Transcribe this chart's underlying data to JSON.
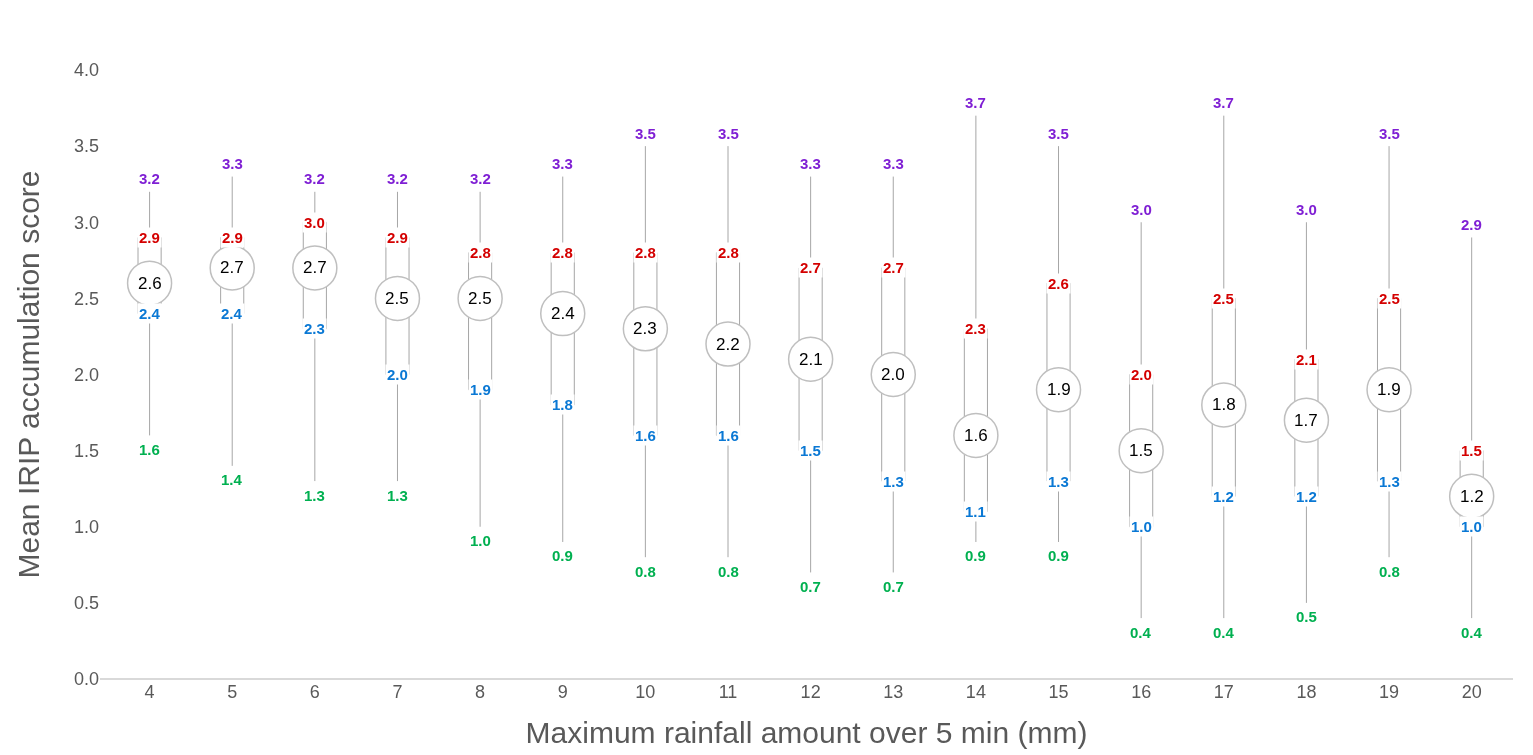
{
  "chart_data": {
    "type": "box",
    "xlabel": "Maximum rainfall amount over 5 min (mm)",
    "ylabel": "Mean IRIP accumulation score",
    "categories": [
      "4",
      "5",
      "6",
      "7",
      "8",
      "9",
      "10",
      "11",
      "12",
      "13",
      "14",
      "15",
      "16",
      "17",
      "18",
      "19",
      "20"
    ],
    "ylim": [
      0,
      4
    ],
    "yticks": [
      {
        "value": 0,
        "label": "0.0"
      },
      {
        "value": 0.5,
        "label": "0.5"
      },
      {
        "value": 1,
        "label": "1.0"
      },
      {
        "value": 1.5,
        "label": "1.5"
      },
      {
        "value": 2,
        "label": "2.0"
      },
      {
        "value": 2.5,
        "label": "2.5"
      },
      {
        "value": 3,
        "label": "3.0"
      },
      {
        "value": 3.5,
        "label": "3.5"
      },
      {
        "value": 4,
        "label": "4.0"
      }
    ],
    "series": [
      {
        "color": "#a6a6a6",
        "boxes": [
          {
            "low": 1.6,
            "q1": 2.4,
            "median": 2.6,
            "q3": 2.9,
            "high": 3.2
          },
          {
            "low": 1.4,
            "q1": 2.4,
            "median": 2.7,
            "q3": 2.9,
            "high": 3.3
          },
          {
            "low": 1.3,
            "q1": 2.3,
            "median": 2.7,
            "q3": 3.0,
            "high": 3.2
          },
          {
            "low": 1.3,
            "q1": 2.0,
            "median": 2.5,
            "q3": 2.9,
            "high": 3.2
          },
          {
            "low": 1.0,
            "q1": 1.9,
            "median": 2.5,
            "q3": 2.8,
            "high": 3.2
          },
          {
            "low": 0.9,
            "q1": 1.8,
            "median": 2.4,
            "q3": 2.8,
            "high": 3.3
          },
          {
            "low": 0.8,
            "q1": 1.6,
            "median": 2.3,
            "q3": 2.8,
            "high": 3.5
          },
          {
            "low": 0.8,
            "q1": 1.6,
            "median": 2.2,
            "q3": 2.8,
            "high": 3.5
          },
          {
            "low": 0.7,
            "q1": 1.5,
            "median": 2.1,
            "q3": 2.7,
            "high": 3.3
          },
          {
            "low": 0.7,
            "q1": 1.3,
            "median": 2.0,
            "q3": 2.7,
            "high": 3.3
          },
          {
            "low": 0.9,
            "q1": 1.1,
            "median": 1.6,
            "q3": 2.3,
            "high": 3.7
          },
          {
            "low": 0.9,
            "q1": 1.3,
            "median": 1.9,
            "q3": 2.6,
            "high": 3.5
          },
          {
            "low": 0.4,
            "q1": 1.0,
            "median": 1.5,
            "q3": 2.0,
            "high": 3.0
          },
          {
            "low": 0.4,
            "q1": 1.2,
            "median": 1.8,
            "q3": 2.5,
            "high": 3.7
          },
          {
            "low": 0.5,
            "q1": 1.2,
            "median": 1.7,
            "q3": 2.1,
            "high": 3.0
          },
          {
            "low": 0.8,
            "q1": 1.3,
            "median": 1.9,
            "q3": 2.5,
            "high": 3.5
          },
          {
            "low": 0.4,
            "q1": 1.0,
            "median": 1.2,
            "q3": 1.5,
            "high": 2.9
          }
        ]
      }
    ],
    "annotations": [
      {
        "text": "3.2",
        "x": "4",
        "y": 3.2
      },
      {
        "text": "2.9",
        "x": "4",
        "y": 2.9
      },
      {
        "text": "2.6",
        "x": "4",
        "y": 2.6
      },
      {
        "text": "2.4",
        "x": "4",
        "y": 2.4
      },
      {
        "text": "1.6",
        "x": "4",
        "y": 1.6
      },
      {
        "text": "3.3",
        "x": "5",
        "y": 3.3
      },
      {
        "text": "2.9",
        "x": "5",
        "y": 2.9
      },
      {
        "text": "2.7",
        "x": "5",
        "y": 2.7
      },
      {
        "text": "2.4",
        "x": "5",
        "y": 2.4
      },
      {
        "text": "1.4",
        "x": "5",
        "y": 1.4
      },
      {
        "text": "3.2",
        "x": "6",
        "y": 3.2
      },
      {
        "text": "3.0",
        "x": "6",
        "y": 3.0
      },
      {
        "text": "2.7",
        "x": "6",
        "y": 2.7
      },
      {
        "text": "2.3",
        "x": "6",
        "y": 2.3
      },
      {
        "text": "1.3",
        "x": "6",
        "y": 1.3
      },
      {
        "text": "3.2",
        "x": "7",
        "y": 3.2
      },
      {
        "text": "2.9",
        "x": "7",
        "y": 2.9
      },
      {
        "text": "2.5",
        "x": "7",
        "y": 2.5
      },
      {
        "text": "2.0",
        "x": "7",
        "y": 2.0
      },
      {
        "text": "1.3",
        "x": "7",
        "y": 1.3
      },
      {
        "text": "3.2",
        "x": "8",
        "y": 3.2
      },
      {
        "text": "2.8",
        "x": "8",
        "y": 2.8
      },
      {
        "text": "2.5",
        "x": "8",
        "y": 2.5
      },
      {
        "text": "1.9",
        "x": "8",
        "y": 1.9
      },
      {
        "text": "1.0",
        "x": "8",
        "y": 1.0
      },
      {
        "text": "3.3",
        "x": "9",
        "y": 3.3
      },
      {
        "text": "2.8",
        "x": "9",
        "y": 2.8
      },
      {
        "text": "2.4",
        "x": "9",
        "y": 2.4
      },
      {
        "text": "1.8",
        "x": "9",
        "y": 1.8
      },
      {
        "text": "0.9",
        "x": "9",
        "y": 0.9
      },
      {
        "text": "3.5",
        "x": "10",
        "y": 3.5
      },
      {
        "text": "2.8",
        "x": "10",
        "y": 2.8
      },
      {
        "text": "2.3",
        "x": "10",
        "y": 2.3
      },
      {
        "text": "1.6",
        "x": "10",
        "y": 1.6
      },
      {
        "text": "0.8",
        "x": "10",
        "y": 0.8
      },
      {
        "text": "3.5",
        "x": "11",
        "y": 3.5
      },
      {
        "text": "2.8",
        "x": "11",
        "y": 2.8
      },
      {
        "text": "2.2",
        "x": "11",
        "y": 2.2
      },
      {
        "text": "1.6",
        "x": "11",
        "y": 1.6
      },
      {
        "text": "0.8",
        "x": "11",
        "y": 0.8
      },
      {
        "text": "3.3",
        "x": "12",
        "y": 3.3
      },
      {
        "text": "2.7",
        "x": "12",
        "y": 2.7
      },
      {
        "text": "2.1",
        "x": "12",
        "y": 2.1
      },
      {
        "text": "1.5",
        "x": "12",
        "y": 1.5
      },
      {
        "text": "0.7",
        "x": "12",
        "y": 0.7
      },
      {
        "text": "3.3",
        "x": "13",
        "y": 3.3
      },
      {
        "text": "2.7",
        "x": "13",
        "y": 2.7
      },
      {
        "text": "2.0",
        "x": "13",
        "y": 2.0
      },
      {
        "text": "1.3",
        "x": "13",
        "y": 1.3
      },
      {
        "text": "0.7",
        "x": "13",
        "y": 0.7
      },
      {
        "text": "3.7",
        "x": "14",
        "y": 3.7
      },
      {
        "text": "2.3",
        "x": "14",
        "y": 2.3
      },
      {
        "text": "1.6",
        "x": "14",
        "y": 1.6
      },
      {
        "text": "1.1",
        "x": "14",
        "y": 1.1
      },
      {
        "text": "0.9",
        "x": "14",
        "y": 0.9
      },
      {
        "text": "3.5",
        "x": "15",
        "y": 3.5
      },
      {
        "text": "2.6",
        "x": "15",
        "y": 2.6
      },
      {
        "text": "1.9",
        "x": "15",
        "y": 1.9
      },
      {
        "text": "1.3",
        "x": "15",
        "y": 1.3
      },
      {
        "text": "0.9",
        "x": "15",
        "y": 0.9
      },
      {
        "text": "3.0",
        "x": "16",
        "y": 3.0
      },
      {
        "text": "2.0",
        "x": "16",
        "y": 2.0
      },
      {
        "text": "1.5",
        "x": "16",
        "y": 1.5
      },
      {
        "text": "1.0",
        "x": "16",
        "y": 1.0
      },
      {
        "text": "0.4",
        "x": "16",
        "y": 0.4
      },
      {
        "text": "3.7",
        "x": "17",
        "y": 3.7
      },
      {
        "text": "2.5",
        "x": "17",
        "y": 2.5
      },
      {
        "text": "1.8",
        "x": "17",
        "y": 1.8
      },
      {
        "text": "1.2",
        "x": "17",
        "y": 1.2
      },
      {
        "text": "0.4",
        "x": "17",
        "y": 0.4
      },
      {
        "text": "3.0",
        "x": "18",
        "y": 3.0
      },
      {
        "text": "2.1",
        "x": "18",
        "y": 2.1
      },
      {
        "text": "1.7",
        "x": "18",
        "y": 1.7
      },
      {
        "text": "1.2",
        "x": "18",
        "y": 1.2
      },
      {
        "text": "0.5",
        "x": "18",
        "y": 0.5
      },
      {
        "text": "3.5",
        "x": "19",
        "y": 3.5
      },
      {
        "text": "2.5",
        "x": "19",
        "y": 2.5
      },
      {
        "text": "1.9",
        "x": "19",
        "y": 1.9
      },
      {
        "text": "1.3",
        "x": "19",
        "y": 1.3
      },
      {
        "text": "0.8",
        "x": "19",
        "y": 0.8
      },
      {
        "text": "2.9",
        "x": "20",
        "y": 2.9
      },
      {
        "text": "1.5",
        "x": "20",
        "y": 1.5
      },
      {
        "text": "1.2",
        "x": "20",
        "y": 1.2
      },
      {
        "text": "1.0",
        "x": "20",
        "y": 1.0
      },
      {
        "text": "0.4",
        "x": "20",
        "y": 0.4
      }
    ]
  }
}
